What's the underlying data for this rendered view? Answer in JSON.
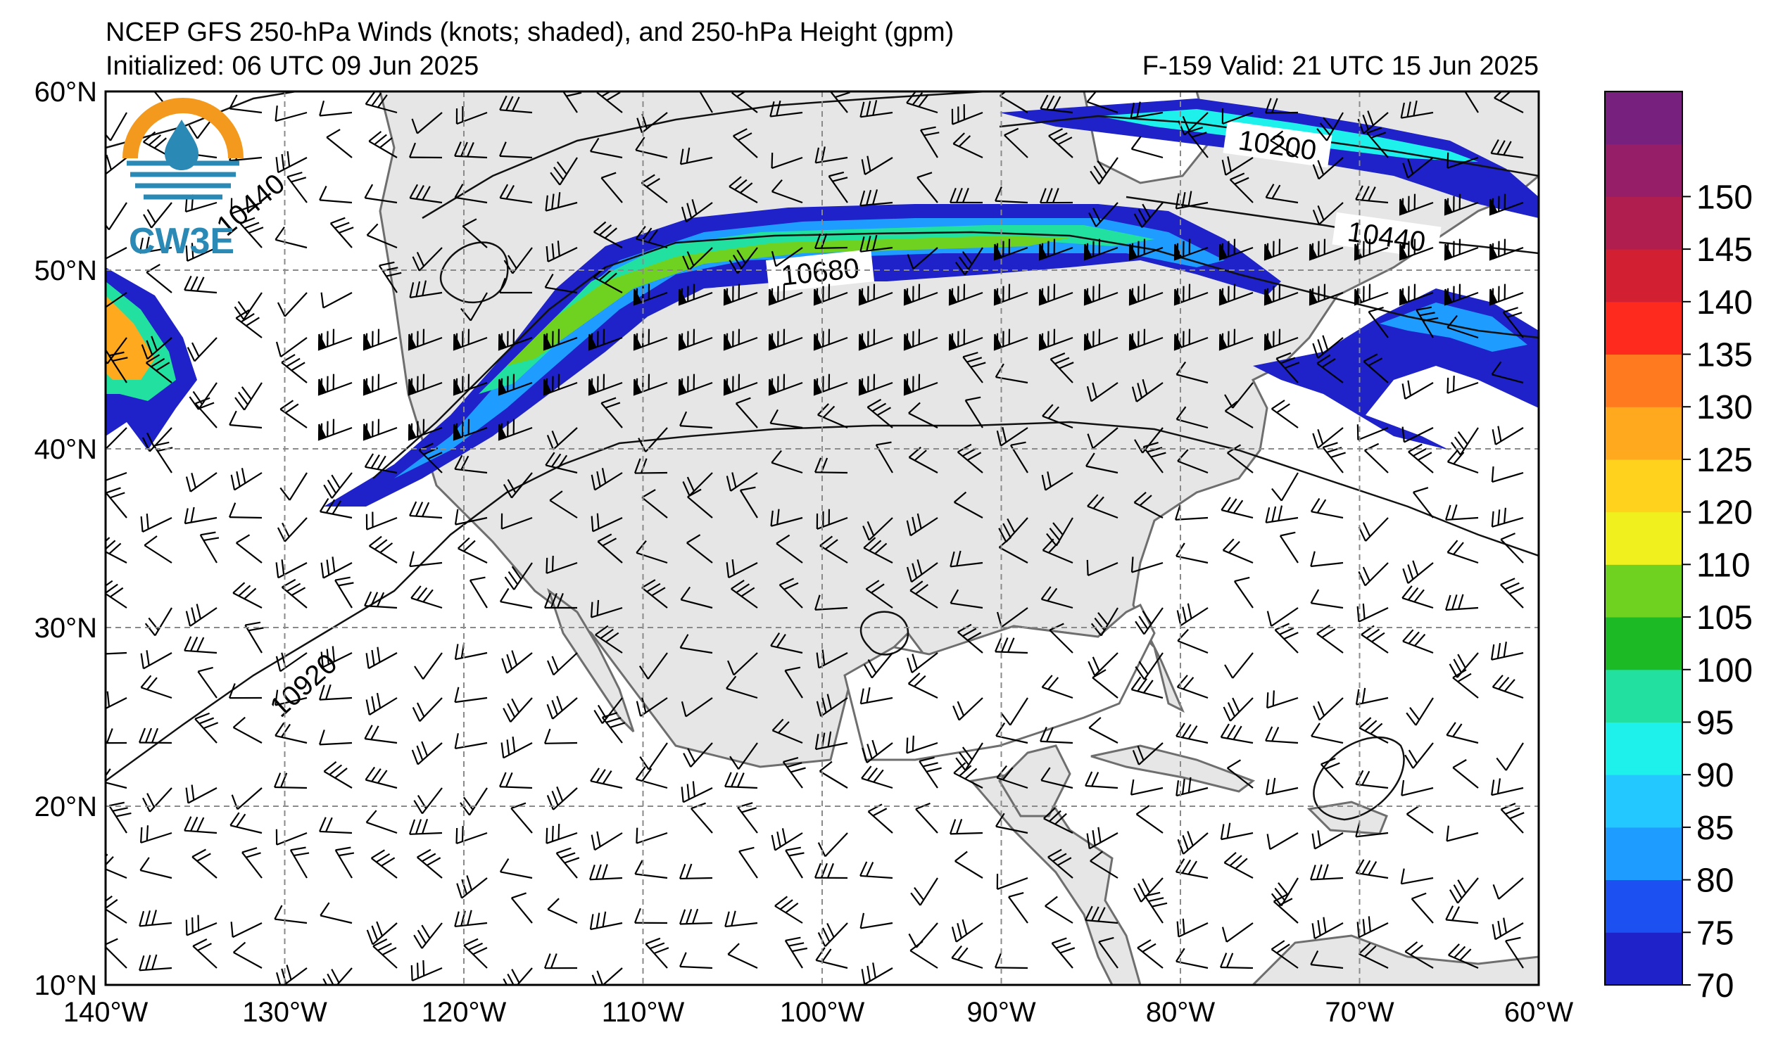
{
  "header": {
    "title": "NCEP GFS 250-hPa Winds (knots; shaded), and 250-hPa Height (gpm)",
    "initialized": "Initialized: 06 UTC 09 Jun 2025",
    "valid": "F-159  Valid: 21 UTC 15 Jun 2025"
  },
  "logo": {
    "text": "CW3E"
  },
  "map": {
    "lat_ticks": [
      "60°N",
      "50°N",
      "40°N",
      "30°N",
      "20°N",
      "10°N"
    ],
    "lon_ticks": [
      "140°W",
      "130°W",
      "120°W",
      "110°W",
      "100°W",
      "90°W",
      "80°W",
      "70°W",
      "60°W"
    ],
    "extent": {
      "lon": [
        -140,
        -60
      ],
      "lat": [
        10,
        60
      ]
    },
    "land_color": "#e6e6e6",
    "coast_color": "#6e6e6e",
    "grid": "dashed gray"
  },
  "contour_labels": [
    "10440",
    "10680",
    "10200",
    "10440",
    "10920"
  ],
  "colorbar": {
    "labels": [
      "70",
      "75",
      "80",
      "85",
      "90",
      "95",
      "100",
      "105",
      "110",
      "120",
      "125",
      "130",
      "135",
      "140",
      "145",
      "150"
    ],
    "colors": [
      "#1e22c8",
      "#1d50f0",
      "#1f9cff",
      "#22c8ff",
      "#1ef0ec",
      "#22e0a0",
      "#1cba24",
      "#70d220",
      "#f0f01e",
      "#ffd21e",
      "#ffaa1e",
      "#ff7a1e",
      "#ff2a1e",
      "#d22032",
      "#b01e50",
      "#961e68",
      "#78207e"
    ],
    "units": "knots"
  }
}
